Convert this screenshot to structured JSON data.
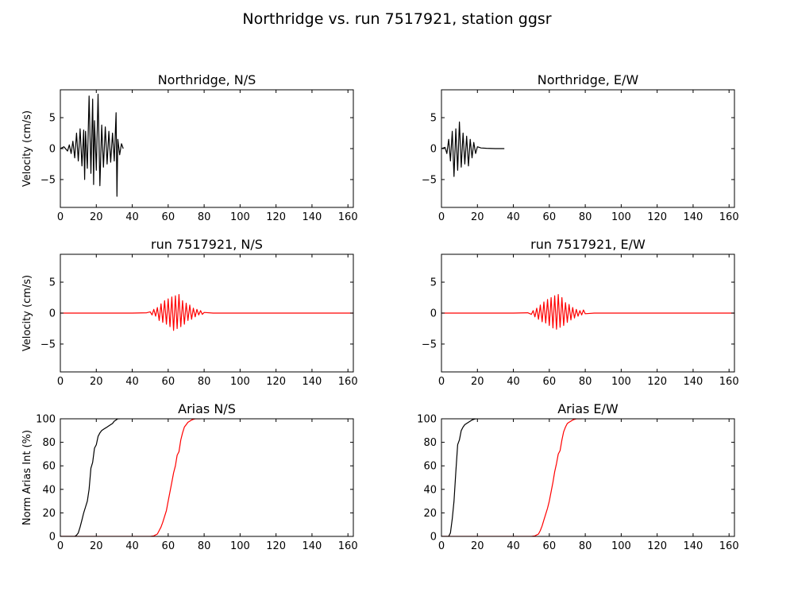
{
  "chart_data": {
    "title": "Northridge vs. run 7517921, station ggsr",
    "panels": [
      {
        "id": "northridge-ns",
        "type": "line",
        "title": "Northridge, N/S",
        "ylabel": "Velocity (cm/s)",
        "xlim": [
          0,
          163
        ],
        "ylim": [
          -9.5,
          9.5
        ],
        "xticks": [
          0,
          20,
          40,
          60,
          80,
          100,
          120,
          140,
          160
        ],
        "yticks": [
          -5,
          0,
          5
        ],
        "series": [
          {
            "color": "#000000",
            "x": [
              0,
              2,
              4,
              5,
              6,
              7,
              8,
              9,
              10,
              11,
              12,
              13,
              13.5,
              14,
              15,
              16,
              17,
              18,
              18.5,
              19,
              20,
              21,
              22,
              23,
              24,
              25,
              26,
              27,
              28,
              29,
              30,
              31,
              31.5,
              32,
              33,
              34,
              35
            ],
            "y": [
              0,
              0.3,
              -0.4,
              0.6,
              -0.8,
              1.2,
              -1.5,
              2.5,
              -2.0,
              3.2,
              -2.8,
              3.0,
              -5.0,
              2.8,
              -3.2,
              8.5,
              -4.0,
              8.0,
              -5.8,
              4.5,
              -3.5,
              8.8,
              -6.0,
              3.8,
              -3.0,
              3.5,
              -2.5,
              2.8,
              -2.2,
              2.5,
              -2.0,
              5.8,
              -7.7,
              1.5,
              -1.0,
              0.8,
              0
            ]
          }
        ]
      },
      {
        "id": "northridge-ew",
        "type": "line",
        "title": "Northridge, E/W",
        "ylabel": "",
        "xlim": [
          0,
          163
        ],
        "ylim": [
          -9.5,
          9.5
        ],
        "xticks": [
          0,
          20,
          40,
          60,
          80,
          100,
          120,
          140,
          160
        ],
        "yticks": [
          -5,
          0,
          5
        ],
        "series": [
          {
            "color": "#000000",
            "x": [
              0,
              2,
              3,
              4,
              5,
              6,
              7,
              8,
              9,
              10,
              11,
              12,
              13,
              14,
              15,
              16,
              17,
              18,
              19,
              20,
              22,
              25,
              30,
              35
            ],
            "y": [
              0,
              0.2,
              -0.8,
              1.5,
              -2.0,
              2.8,
              -4.5,
              3.2,
              -3.5,
              4.3,
              -3.0,
              2.5,
              -2.5,
              2.0,
              -2.8,
              1.5,
              -1.5,
              1.0,
              -0.8,
              0.3,
              0.1,
              0.05,
              0,
              0
            ]
          }
        ]
      },
      {
        "id": "run-ns",
        "type": "line",
        "title": "run 7517921, N/S",
        "ylabel": "Velocity (cm/s)",
        "xlim": [
          0,
          163
        ],
        "ylim": [
          -9.5,
          9.5
        ],
        "xticks": [
          0,
          20,
          40,
          60,
          80,
          100,
          120,
          140,
          160
        ],
        "yticks": [
          -5,
          0,
          5
        ],
        "series": [
          {
            "color": "#ff0000",
            "x": [
              0,
              20,
              40,
              48,
              50,
              51,
              52,
              53,
              54,
              55,
              56,
              57,
              58,
              59,
              60,
              61,
              62,
              63,
              64,
              65,
              66,
              67,
              68,
              69,
              70,
              71,
              72,
              73,
              74,
              75,
              76,
              77,
              78,
              79,
              80,
              85,
              100,
              163
            ],
            "y": [
              0,
              0,
              0,
              0.05,
              0.2,
              -0.3,
              0.6,
              -0.5,
              0.9,
              -1.2,
              1.5,
              -1.5,
              2.0,
              -1.8,
              2.3,
              -2.2,
              2.6,
              -2.8,
              2.8,
              -2.5,
              3.0,
              -2.2,
              2.0,
              -1.8,
              1.6,
              -1.2,
              1.3,
              -1.0,
              0.8,
              -0.6,
              0.6,
              -0.3,
              0.4,
              -0.2,
              0.1,
              0,
              0,
              0
            ]
          }
        ]
      },
      {
        "id": "run-ew",
        "type": "line",
        "title": "run 7517921, E/W",
        "ylabel": "",
        "xlim": [
          0,
          163
        ],
        "ylim": [
          -9.5,
          9.5
        ],
        "xticks": [
          0,
          20,
          40,
          60,
          80,
          100,
          120,
          140,
          160
        ],
        "yticks": [
          -5,
          0,
          5
        ],
        "series": [
          {
            "color": "#ff0000",
            "x": [
              0,
              20,
              40,
              48,
              50,
              51,
              52,
              53,
              54,
              55,
              56,
              57,
              58,
              59,
              60,
              61,
              62,
              63,
              64,
              65,
              66,
              67,
              68,
              69,
              70,
              71,
              72,
              73,
              74,
              75,
              76,
              77,
              78,
              79,
              80,
              85,
              100,
              163
            ],
            "y": [
              0,
              0,
              0,
              0.05,
              -0.2,
              0.4,
              -0.6,
              0.8,
              -1.0,
              1.3,
              -1.4,
              1.8,
              -1.6,
              2.2,
              -2.0,
              2.5,
              -2.4,
              2.8,
              -2.6,
              3.0,
              -2.3,
              2.5,
              -2.0,
              1.7,
              -1.5,
              1.4,
              -1.1,
              0.9,
              -0.8,
              0.6,
              -0.5,
              0.4,
              -0.3,
              0.5,
              -0.1,
              0,
              0,
              0
            ]
          }
        ]
      },
      {
        "id": "arias-ns",
        "type": "line",
        "title": "Arias N/S",
        "ylabel": "Norm Arias Int (%)",
        "xlim": [
          0,
          163
        ],
        "ylim": [
          0,
          100
        ],
        "xticks": [
          0,
          20,
          40,
          60,
          80,
          100,
          120,
          140,
          160
        ],
        "yticks": [
          0,
          20,
          40,
          60,
          80,
          100
        ],
        "series": [
          {
            "color": "#000000",
            "x": [
              0,
              8,
              9,
              10,
              11,
              12,
              13,
              14,
              15,
              16,
              17,
              18,
              19,
              20,
              21,
              22,
              23,
              24,
              25,
              26,
              27,
              28,
              29,
              30,
              31,
              32,
              33
            ],
            "y": [
              0,
              0,
              1,
              3,
              8,
              14,
              20,
              25,
              30,
              40,
              58,
              63,
              75,
              78,
              85,
              88,
              90,
              91,
              92,
              93,
              94,
              95,
              96,
              98,
              99,
              100,
              100
            ]
          },
          {
            "color": "#ff0000",
            "x": [
              0,
              50,
              52,
              54,
              55,
              56,
              57,
              58,
              59,
              60,
              61,
              62,
              63,
              64,
              65,
              66,
              67,
              68,
              69,
              70,
              71,
              72,
              73,
              74,
              75,
              76,
              77,
              78
            ],
            "y": [
              0,
              0,
              0.5,
              2,
              5,
              8,
              12,
              17,
              22,
              30,
              38,
              46,
              54,
              60,
              69,
              72,
              82,
              88,
              93,
              95,
              97,
              98,
              99,
              99.5,
              100,
              100,
              100,
              100
            ]
          }
        ]
      },
      {
        "id": "arias-ew",
        "type": "line",
        "title": "Arias E/W",
        "ylabel": "",
        "xlim": [
          0,
          163
        ],
        "ylim": [
          0,
          100
        ],
        "xticks": [
          0,
          20,
          40,
          60,
          80,
          100,
          120,
          140,
          160
        ],
        "yticks": [
          0,
          20,
          40,
          60,
          80,
          100
        ],
        "series": [
          {
            "color": "#000000",
            "x": [
              0,
              4,
              5,
              6,
              7,
              8,
              9,
              10,
              11,
              12,
              13,
              14,
              15,
              16,
              17,
              18,
              19,
              20
            ],
            "y": [
              0,
              0,
              3,
              15,
              30,
              55,
              78,
              82,
              90,
              93,
              95,
              96,
              97,
              98,
              99,
              99.5,
              100,
              100
            ]
          },
          {
            "color": "#ff0000",
            "x": [
              0,
              50,
              52,
              54,
              55,
              56,
              57,
              58,
              59,
              60,
              61,
              62,
              63,
              64,
              65,
              66,
              67,
              68,
              69,
              70,
              71,
              72,
              73,
              74,
              75,
              76,
              77,
              78
            ],
            "y": [
              0,
              0,
              0.5,
              2,
              5,
              9,
              14,
              19,
              24,
              30,
              38,
              46,
              55,
              62,
              70,
              73,
              82,
              89,
              93,
              96,
              97,
              98,
              99,
              99.5,
              100,
              100,
              100,
              100
            ]
          }
        ]
      }
    ]
  }
}
